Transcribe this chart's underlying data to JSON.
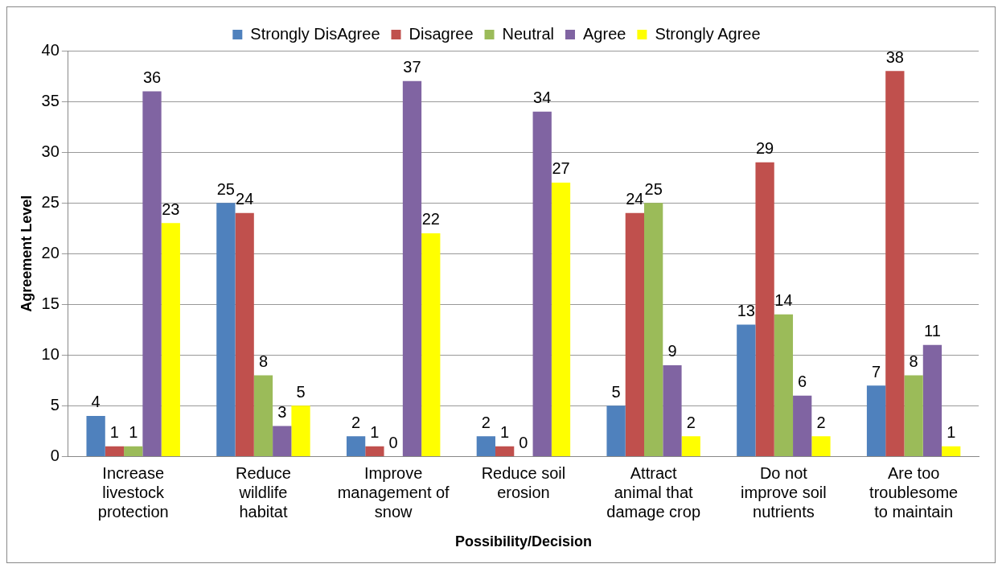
{
  "chart_data": {
    "type": "bar",
    "xlabel": "Possibility/Decision",
    "ylabel": "Agreement Level",
    "categories": [
      "Increase livestock protection",
      "Reduce wildlife habitat",
      "Improve management of snow",
      "Reduce soil erosion",
      "Attract animal that damage crop",
      "Do not improve soil nutrients",
      "Are too troublesome to maintain"
    ],
    "series": [
      {
        "name": "Strongly DisAgree",
        "color": "#4f81bd",
        "values": [
          4,
          25,
          2,
          2,
          5,
          13,
          7
        ]
      },
      {
        "name": "Disagree",
        "color": "#c0504d",
        "values": [
          1,
          24,
          1,
          1,
          24,
          29,
          38
        ]
      },
      {
        "name": "Neutral",
        "color": "#9bbb59",
        "values": [
          1,
          8,
          0,
          0,
          25,
          14,
          8
        ]
      },
      {
        "name": "Agree",
        "color": "#8064a2",
        "values": [
          36,
          3,
          37,
          34,
          9,
          6,
          11
        ]
      },
      {
        "name": "Strongly Agree",
        "color": "#ffff00",
        "values": [
          23,
          5,
          22,
          27,
          2,
          2,
          1
        ]
      }
    ],
    "ylim": [
      0,
      40
    ],
    "yticks": [
      0,
      5,
      10,
      15,
      20,
      25,
      30,
      35,
      40
    ],
    "grid": "y",
    "legend": "top",
    "data_labels": true
  }
}
